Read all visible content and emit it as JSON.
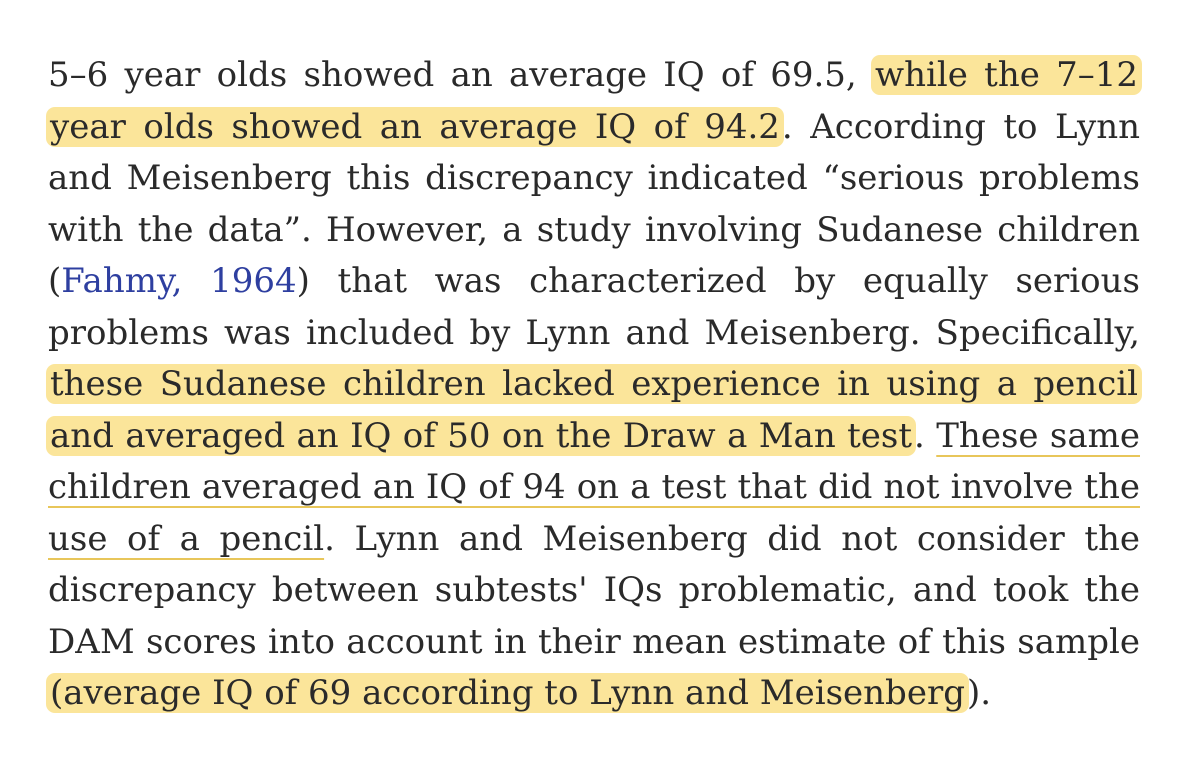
{
  "paragraph": {
    "s1": "5–6 year olds showed an average IQ of 69.5,",
    "s2": "while the 7–12 year olds showed an average IQ of 94.2",
    "s3": ". According to Lynn and Meisenberg this discrepancy indicated “serious problems with the data”. However, a study involving Sudanese children (",
    "citation": "Fahmy, 1964",
    "s4": ") that was characterized by equally serious problems was included by Lynn and Meisenberg. Specifically,",
    "s5": "these Sudanese children lacked experience in using a pencil and averaged an IQ of 50 on the Draw a Man test",
    "s6": ".",
    "s7": "These same children averaged an IQ of 94 on a test that did not involve the use of a pencil",
    "s8": ". Lynn and Meisenberg did not consider the discrepancy between subtests' IQs problematic, and took the DAM scores into account in their mean estimate of this sample",
    "s9": "(average IQ of 69 according to Lynn and Meisenberg",
    "s10": ")."
  },
  "colors": {
    "highlight": "#fbe59a",
    "underline": "#e8c65a",
    "citation_link": "#2e3fa0",
    "text": "#2a2a2a"
  }
}
